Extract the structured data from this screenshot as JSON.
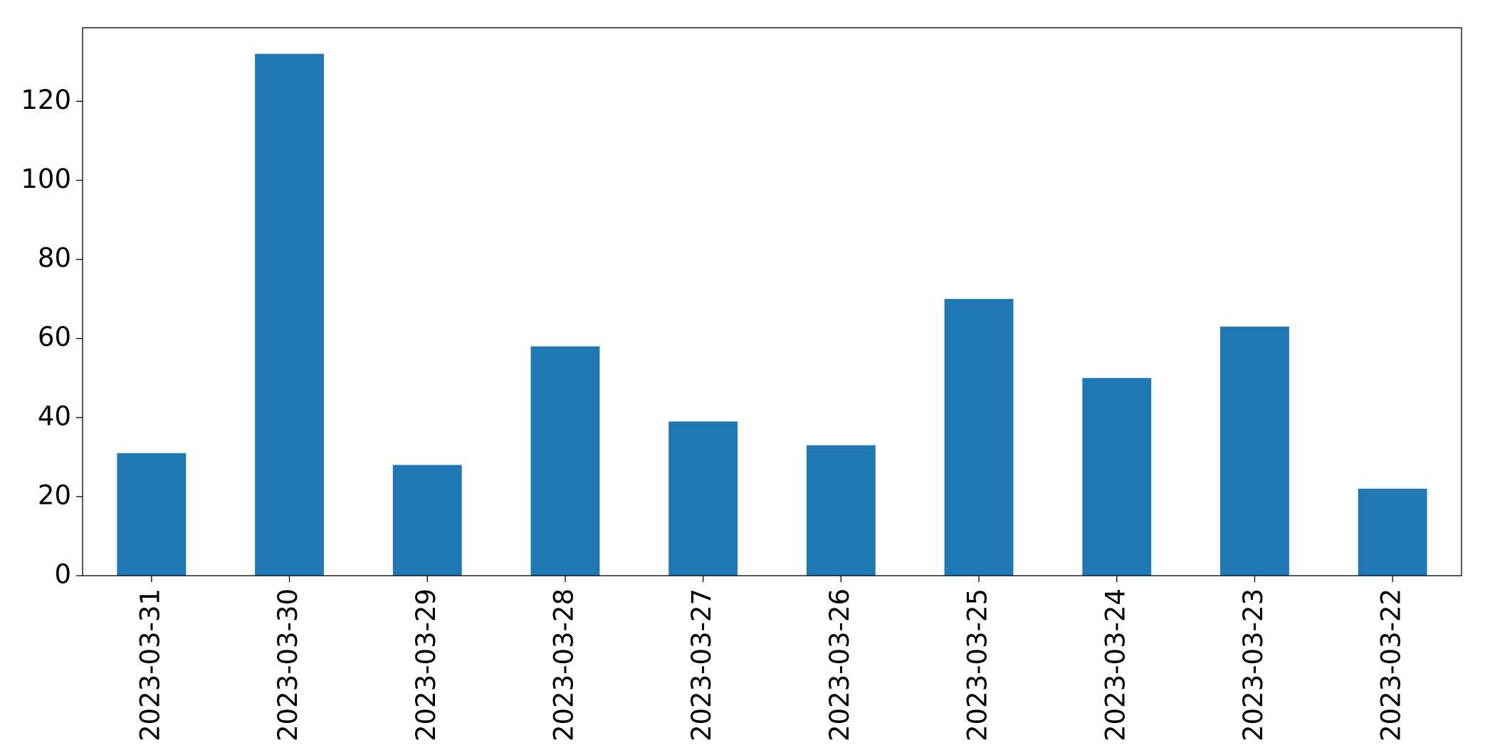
{
  "chart_data": {
    "type": "bar",
    "categories": [
      "2023-03-31",
      "2023-03-30",
      "2023-03-29",
      "2023-03-28",
      "2023-03-27",
      "2023-03-26",
      "2023-03-25",
      "2023-03-24",
      "2023-03-23",
      "2023-03-22"
    ],
    "values": [
      31,
      132,
      28,
      58,
      39,
      33,
      70,
      50,
      63,
      22
    ],
    "color": "#1f77b4",
    "ylim": [
      0,
      138.6
    ],
    "yticks": [
      0,
      20,
      40,
      60,
      80,
      100,
      120
    ],
    "grid": false
  }
}
